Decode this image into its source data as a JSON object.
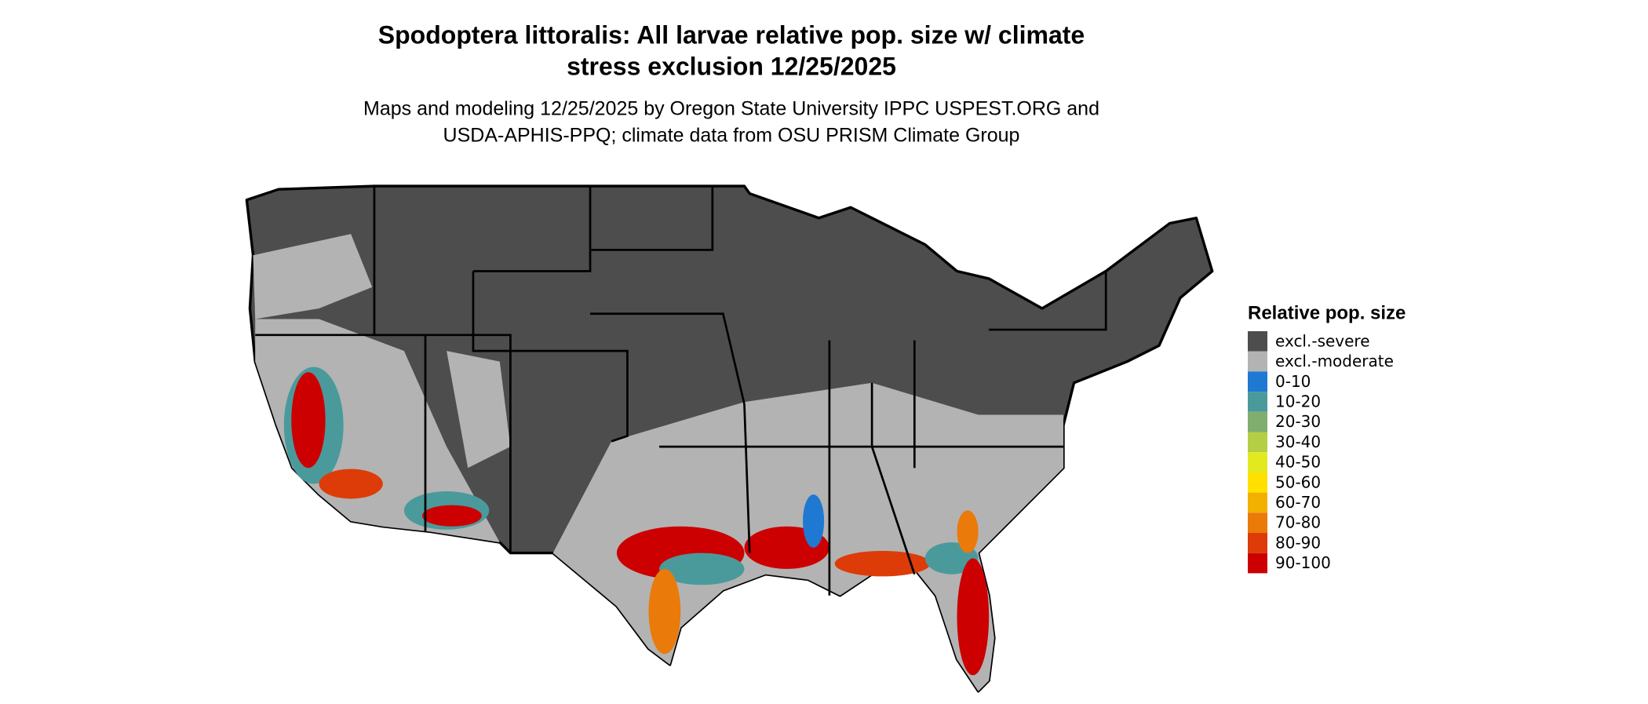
{
  "title": [
    "Spodoptera littoralis: All larvae relative pop. size w/ climate",
    "stress exclusion 12/25/2025"
  ],
  "subtitle": [
    "Maps and modeling 12/25/2025 by Oregon State University IPPC USPEST.ORG and",
    "USDA-APHIS-PPQ; climate data from OSU PRISM Climate Group"
  ],
  "legend": {
    "title": "Relative pop. size",
    "items": [
      {
        "label": "excl.-severe",
        "color": "#4d4d4d"
      },
      {
        "label": "excl.-moderate",
        "color": "#b3b3b3"
      },
      {
        "label": "0-10",
        "color": "#1f78d1"
      },
      {
        "label": "10-20",
        "color": "#4a9a9c"
      },
      {
        "label": "20-30",
        "color": "#7fae6e"
      },
      {
        "label": "30-40",
        "color": "#b4cf46"
      },
      {
        "label": "40-50",
        "color": "#e2ea1f"
      },
      {
        "label": "50-60",
        "color": "#ffe000"
      },
      {
        "label": "60-70",
        "color": "#f2b000"
      },
      {
        "label": "70-80",
        "color": "#ea7a0a"
      },
      {
        "label": "80-90",
        "color": "#dd3c08"
      },
      {
        "label": "90-100",
        "color": "#cc0000"
      }
    ]
  }
}
